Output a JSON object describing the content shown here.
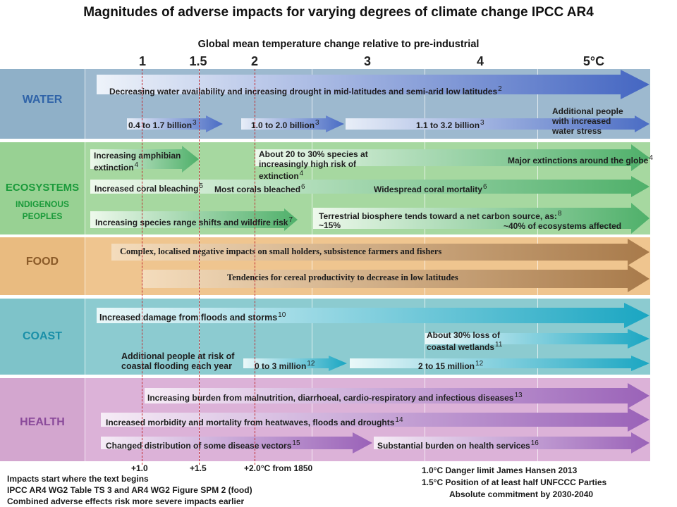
{
  "title": "Magnitudes of adverse impacts for varying degrees of climate change  IPCC AR4",
  "subtitle": "Global mean temperature change relative to pre-industrial",
  "ticks": [
    "1",
    "1.5",
    "2",
    "3",
    "4",
    "5°C"
  ],
  "bands": {
    "water": "WATER",
    "ecosystems": "ECOSYSTEMS",
    "indigenous": "INDIGENOUS\nPEOPLES",
    "food": "FOOD",
    "coast": "COAST",
    "health": "HEALTH"
  },
  "impacts": {
    "water_1": "Decreasing water availability and increasing drought in mid-latitudes and semi-arid low latitudes",
    "water_1_ref": "2",
    "water_2a": "0.4 to 1.7 billion",
    "water_2a_ref": "3",
    "water_2b": "1.0 to 2.0 billion",
    "water_2b_ref": "3",
    "water_2c": "1.1 to 3.2 billion",
    "water_2c_ref": "3",
    "water_2d": "Additional people with increased water stress",
    "eco_1a": "Increasing amphibian extinction",
    "eco_1a_ref": "4",
    "eco_1b": "About 20 to 30% species at increasingly high risk of extinction",
    "eco_1b_ref": "4",
    "eco_1c": "Major extinctions around the globe",
    "eco_1c_ref": "4",
    "eco_2a": "Increased coral bleaching",
    "eco_2a_ref": "5",
    "eco_2b": "Most corals bleached",
    "eco_2b_ref": "6",
    "eco_2c": "Widespread coral mortality",
    "eco_2c_ref": "6",
    "eco_3a": "Increasing species range shifts and wildfire risk",
    "eco_3a_ref": "7",
    "eco_3b": "Terrestrial biosphere tends toward a net carbon source, as:",
    "eco_3b_ref": "8",
    "eco_3c": "~15%",
    "eco_3d": "~40% of ecosystems affected",
    "food_1": "Complex, localised  negative impacts on small holders, subsistence farmers and fishers",
    "food_2": "Tendencies for cereal productivity to decrease in low latitudes",
    "coast_1": "Increased damage from floods and storms",
    "coast_1_ref": "10",
    "coast_2": "About 30% loss of coastal wetlands",
    "coast_2_ref": "11",
    "coast_3a": "Additional people at risk of coastal flooding each year",
    "coast_3b": "0 to 3 million",
    "coast_3b_ref": "12",
    "coast_3c": "2 to 15 million",
    "coast_3c_ref": "12",
    "health_1": "Increasing burden from malnutrition, diarrhoeal, cardio-respiratory and infectious diseases",
    "health_1_ref": "13",
    "health_2": "Increased morbidity and mortality from heatwaves, floods and droughts",
    "health_2_ref": "14",
    "health_3a": "Changed distribution of some disease vectors",
    "health_3a_ref": "15",
    "health_3b": "Substantial burden on health services",
    "health_3b_ref": "16"
  },
  "markers": [
    "+1.0",
    "+1.5",
    "+2.0°C from 1850"
  ],
  "footnotes_left": [
    "Impacts start where the text begins",
    "IPCC AR4 WG2 Table TS 3 and AR4 WG2 Figure SPM 2 (food)",
    "Combined adverse effects risk more severe impacts earlier"
  ],
  "footnotes_right": [
    "1.0°C  Danger limit James Hansen 2013",
    "1.5°C  Position of at least half UNFCCC Parties",
    "Absolute commitment by  2030-2040"
  ],
  "colors": {
    "water_band": "#9db9cf",
    "water_label": "#2f63a8",
    "eco_band": "#a6d8a0",
    "eco_label": "#1a9a3a",
    "food_band": "#efc58f",
    "food_label": "#8a5a28",
    "coast_band": "#8ccbd0",
    "coast_label": "#1a8fa8",
    "health_band": "#dcb2d8",
    "health_label": "#8a4a9a",
    "marker_line": "#c0282d"
  }
}
